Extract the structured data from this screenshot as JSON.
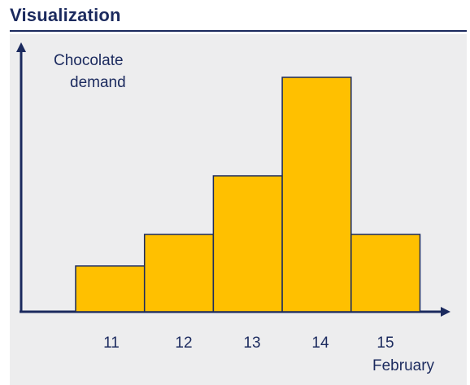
{
  "header": {
    "title": "Visualization"
  },
  "chart_data": {
    "type": "bar",
    "title": "",
    "ylabel_lines": [
      "Chocolate",
      "demand"
    ],
    "xlabel": "February",
    "categories": [
      "11",
      "12",
      "13",
      "14",
      "15"
    ],
    "values": [
      19.5,
      33,
      58,
      100,
      33
    ],
    "ylim": [
      0,
      100
    ],
    "grid": false,
    "legend": "none",
    "colors": {
      "bar_fill": "#ffc000",
      "bar_stroke": "#1b2a5e",
      "axis": "#1b2a5e"
    }
  }
}
